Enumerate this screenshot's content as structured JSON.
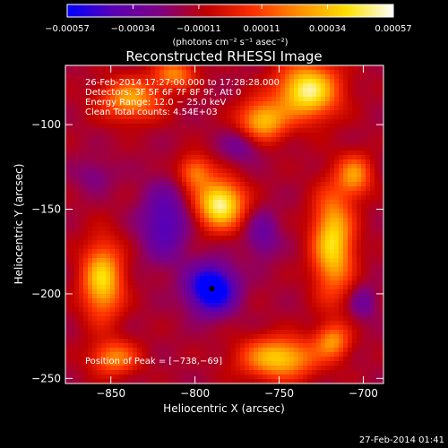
{
  "chart_data": {
    "type": "heatmap",
    "title": "Reconstructed RHESSI Image",
    "xlabel": "Heliocentric X (arcsec)",
    "ylabel": "Heliocentric Y (arcsec)",
    "xlim": [
      -877,
      -688
    ],
    "ylim": [
      -253,
      -65
    ],
    "xticks": [
      -850,
      -800,
      -750,
      -700
    ],
    "yticks": [
      -100,
      -150,
      -200,
      -250
    ],
    "xtick_labels": [
      "−850",
      "−800",
      "−750",
      "−700"
    ],
    "ytick_labels": [
      "−100",
      "−150",
      "−200",
      "−250"
    ],
    "colorbar": {
      "min": -0.00057,
      "max": 0.00057,
      "ticks": [
        -0.00057,
        -0.00034,
        -0.00011,
        0.00011,
        0.00034,
        0.00057
      ],
      "tick_labels": [
        "−0.00057",
        "−0.00034",
        "−0.00011",
        "0.00011",
        "0.00034",
        "0.00057"
      ],
      "unit_label": "(photons cm⁻² s⁻¹ asec⁻²)",
      "colors": [
        "#0000ff",
        "#5a00b4",
        "#800080",
        "#c00000",
        "#ff3000",
        "#ff9000",
        "#ffe000",
        "#ffffff"
      ]
    },
    "annotations": [
      "26-Feb-2014 17:27:00.000 to 17:28:28.000",
      "Detectors: 3F 5F 6F 7F 8F 9F, Att 0",
      "Energy Range: 12.0 − 25.0 keV",
      "Clean     Total counts: 4.54E+03"
    ],
    "peak_label": "Position of Peak = [−738,−69]",
    "peak": [
      -738,
      -69
    ],
    "minimum_marker": [
      -790,
      -197
    ],
    "blobs": [
      {
        "x": -733,
        "y": -80,
        "value": 0.0005,
        "sx": 18,
        "sy": 16
      },
      {
        "x": -760,
        "y": -98,
        "value": 0.00034,
        "sx": 14,
        "sy": 12
      },
      {
        "x": -838,
        "y": -85,
        "value": 0.00028,
        "sx": 18,
        "sy": 12
      },
      {
        "x": -812,
        "y": -70,
        "value": 0.00022,
        "sx": 12,
        "sy": 8
      },
      {
        "x": -785,
        "y": -147,
        "value": 0.00052,
        "sx": 14,
        "sy": 14
      },
      {
        "x": -800,
        "y": -128,
        "value": 0.0002,
        "sx": 10,
        "sy": 10
      },
      {
        "x": -855,
        "y": -192,
        "value": 0.0004,
        "sx": 12,
        "sy": 22
      },
      {
        "x": -848,
        "y": -238,
        "value": 0.00022,
        "sx": 14,
        "sy": 10
      },
      {
        "x": -718,
        "y": -170,
        "value": 0.00042,
        "sx": 12,
        "sy": 30
      },
      {
        "x": -705,
        "y": -130,
        "value": 0.00024,
        "sx": 10,
        "sy": 12
      },
      {
        "x": -750,
        "y": -238,
        "value": 0.00038,
        "sx": 22,
        "sy": 12
      },
      {
        "x": -718,
        "y": -228,
        "value": 0.00022,
        "sx": 10,
        "sy": 10
      },
      {
        "x": -790,
        "y": -197,
        "value": -0.00057,
        "sx": 14,
        "sy": 14
      },
      {
        "x": -818,
        "y": -158,
        "value": -0.0003,
        "sx": 14,
        "sy": 22
      },
      {
        "x": -760,
        "y": -165,
        "value": -0.0002,
        "sx": 10,
        "sy": 14
      },
      {
        "x": -772,
        "y": -112,
        "value": -0.00018,
        "sx": 12,
        "sy": 10
      },
      {
        "x": -700,
        "y": -205,
        "value": -0.00018,
        "sx": 8,
        "sy": 10
      },
      {
        "x": -860,
        "y": -130,
        "value": -0.00012,
        "sx": 12,
        "sy": 10
      }
    ]
  },
  "footer_timestamp": "27-Feb-2014 01:41"
}
